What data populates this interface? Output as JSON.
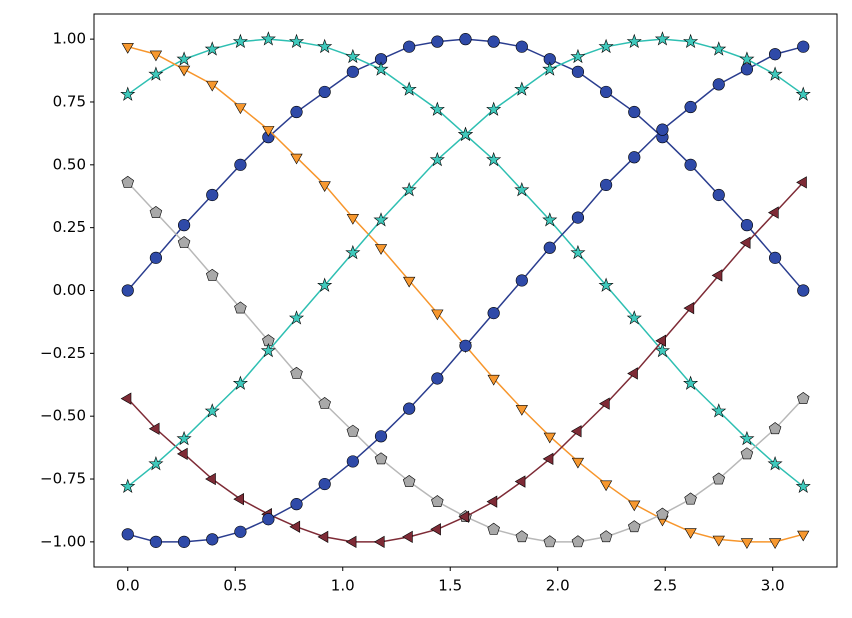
{
  "chart_data": {
    "type": "line",
    "x": [
      0,
      0.131,
      0.262,
      0.393,
      0.524,
      0.654,
      0.785,
      0.916,
      1.047,
      1.178,
      1.309,
      1.44,
      1.571,
      1.702,
      1.833,
      1.963,
      2.094,
      2.225,
      2.356,
      2.487,
      2.618,
      2.749,
      2.88,
      3.011,
      3.142
    ],
    "series": [
      {
        "color": "#2a3d8f",
        "marker_color": "#2f4aa8",
        "marker": "circle",
        "values": [
          0,
          0.13,
          0.26,
          0.38,
          0.5,
          0.61,
          0.71,
          0.79,
          0.87,
          0.92,
          0.97,
          0.99,
          1.0,
          0.99,
          0.97,
          0.92,
          0.87,
          0.79,
          0.71,
          0.61,
          0.5,
          0.38,
          0.26,
          0.13,
          0
        ]
      },
      {
        "color": "#2ebfb2",
        "marker_color": "#3fc9bc",
        "marker": "star",
        "values": [
          0.78,
          0.86,
          0.92,
          0.96,
          0.99,
          1.0,
          0.99,
          0.97,
          0.93,
          0.88,
          0.8,
          0.72,
          0.62,
          0.52,
          0.4,
          0.28,
          0.15,
          0.02,
          -0.11,
          -0.24,
          -0.37,
          -0.48,
          -0.59,
          -0.69,
          -0.78
        ]
      },
      {
        "color": "#f7962c",
        "marker_color": "#f7982f",
        "marker": "triangle-down",
        "values": [
          0.97,
          0.94,
          0.88,
          0.82,
          0.73,
          0.64,
          0.53,
          0.42,
          0.29,
          0.17,
          0.04,
          -0.09,
          -0.22,
          -0.35,
          -0.47,
          -0.58,
          -0.68,
          -0.77,
          -0.85,
          -0.91,
          -0.96,
          -0.99,
          -1.0,
          -1.0,
          -0.97
        ]
      },
      {
        "color": "#b8b8b8",
        "marker_color": "#a9a9a9",
        "marker": "pentagon",
        "values": [
          0.43,
          0.31,
          0.19,
          0.06,
          -0.07,
          -0.2,
          -0.33,
          -0.45,
          -0.56,
          -0.67,
          -0.76,
          -0.84,
          -0.9,
          -0.95,
          -0.98,
          -1.0,
          -1.0,
          -0.98,
          -0.94,
          -0.89,
          -0.83,
          -0.75,
          -0.65,
          -0.55,
          -0.43
        ]
      },
      {
        "color": "#7e2b36",
        "marker_color": "#7e2b36",
        "marker": "triangle-left",
        "values": [
          -0.43,
          -0.55,
          -0.65,
          -0.75,
          -0.83,
          -0.89,
          -0.94,
          -0.98,
          -1.0,
          -1.0,
          -0.98,
          -0.95,
          -0.9,
          -0.84,
          -0.76,
          -0.67,
          -0.56,
          -0.45,
          -0.33,
          -0.2,
          -0.07,
          0.06,
          0.19,
          0.31,
          0.43
        ]
      },
      {
        "color": "#2a3d8f",
        "marker_color": "#2f4aa8",
        "marker": "circle",
        "values": [
          -0.97,
          -1.0,
          -1.0,
          -0.99,
          -0.96,
          -0.91,
          -0.85,
          -0.77,
          -0.68,
          -0.58,
          -0.47,
          -0.35,
          -0.22,
          -0.09,
          0.04,
          0.17,
          0.29,
          0.42,
          0.53,
          0.64,
          0.73,
          0.82,
          0.88,
          0.94,
          0.97
        ]
      },
      {
        "color": "#2ebfb2",
        "marker_color": "#3fc9bc",
        "marker": "star",
        "values": [
          -0.78,
          -0.69,
          -0.59,
          -0.48,
          -0.37,
          -0.24,
          -0.11,
          0.02,
          0.15,
          0.28,
          0.4,
          0.52,
          0.62,
          0.72,
          0.8,
          0.88,
          0.93,
          0.97,
          0.99,
          1.0,
          0.99,
          0.96,
          0.92,
          0.86,
          0.78
        ]
      }
    ],
    "xlim": [
      -0.157,
      3.299
    ],
    "ylim": [
      -1.1,
      1.1
    ],
    "xticks": [
      {
        "value": 0,
        "label": "0.0"
      },
      {
        "value": 0.5,
        "label": "0.5"
      },
      {
        "value": 1,
        "label": "1.0"
      },
      {
        "value": 1.5,
        "label": "1.5"
      },
      {
        "value": 2,
        "label": "2.0"
      },
      {
        "value": 2.5,
        "label": "2.5"
      },
      {
        "value": 3,
        "label": "3.0"
      }
    ],
    "yticks": [
      {
        "value": -1,
        "label": "−1.00"
      },
      {
        "value": -0.75,
        "label": "−0.75"
      },
      {
        "value": -0.5,
        "label": "−0.50"
      },
      {
        "value": -0.25,
        "label": "−0.25"
      },
      {
        "value": 0,
        "label": "0.00"
      },
      {
        "value": 0.25,
        "label": "0.25"
      },
      {
        "value": 0.5,
        "label": "0.50"
      },
      {
        "value": 0.75,
        "label": "0.75"
      },
      {
        "value": 1,
        "label": "1.00"
      }
    ],
    "grid": false
  }
}
